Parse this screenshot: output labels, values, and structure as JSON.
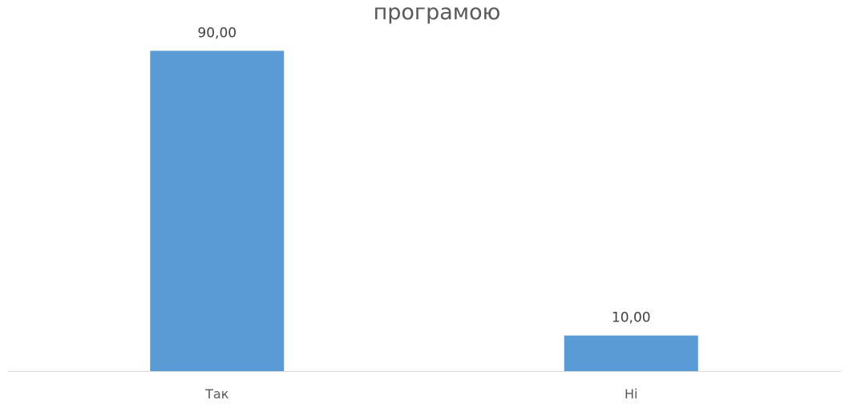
{
  "chart_data": {
    "type": "bar",
    "title": "програмою",
    "categories": [
      "Так",
      "Ні"
    ],
    "values": [
      90,
      10
    ],
    "data_labels": [
      "90,00",
      "10,00"
    ],
    "xlabel": "",
    "ylabel": "",
    "ylim": [
      0,
      100
    ],
    "grid": false,
    "legend": "none",
    "colors": {
      "bar": "#5B9BD5",
      "axis": "#D9D9D9",
      "title": "#595959",
      "label": "#404040"
    }
  }
}
